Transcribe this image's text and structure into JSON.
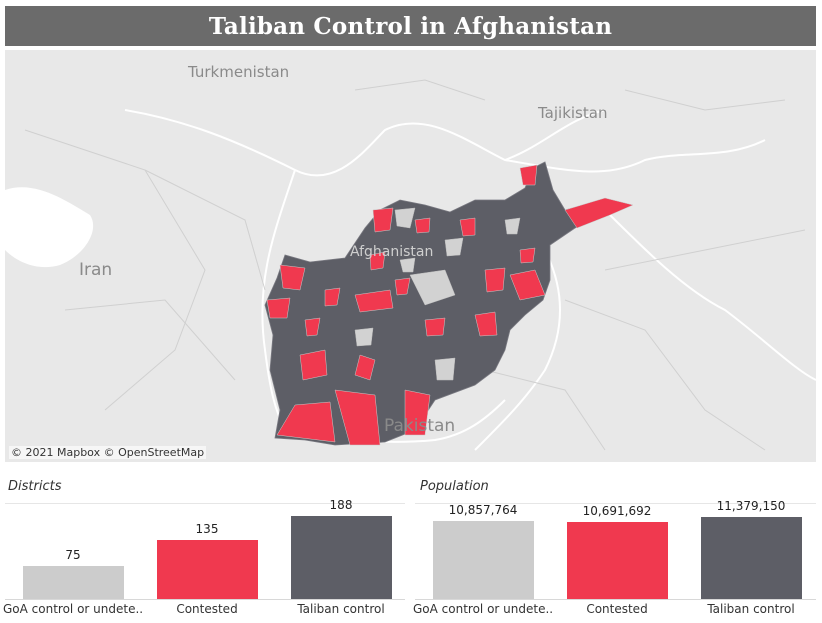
{
  "title": "Taliban Control in Afghanistan",
  "colors": {
    "goa": "#cccccc",
    "contested": "#f0394f",
    "taliban": "#5d5e66"
  },
  "map": {
    "labels": {
      "turkmenistan": "Turkmenistan",
      "tajikistan": "Tajikistan",
      "iran": "Iran",
      "afghanistan": "Afghanistan",
      "pakistan": "Pakistan"
    },
    "attribution": "© 2021 Mapbox  © OpenStreetMap"
  },
  "districts_panel": {
    "title": "Districts"
  },
  "population_panel": {
    "title": "Population"
  },
  "chart_data": [
    {
      "type": "bar",
      "title": "Districts",
      "categories": [
        "GoA control or undete..",
        "Contested",
        "Taliban control"
      ],
      "values": [
        75,
        135,
        188
      ],
      "labels": [
        "75",
        "135",
        "188"
      ],
      "ylim": [
        0,
        200
      ]
    },
    {
      "type": "bar",
      "title": "Population",
      "categories": [
        "GoA control or undete..",
        "Contested",
        "Taliban control"
      ],
      "values": [
        10857764,
        10691692,
        11379150
      ],
      "labels": [
        "10,857,764",
        "10,691,692",
        "11,379,150"
      ],
      "ylim": [
        0,
        12200000
      ]
    }
  ]
}
